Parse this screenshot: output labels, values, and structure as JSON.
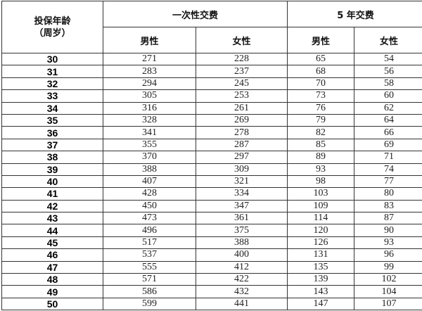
{
  "header": {
    "age_label_line1": "投保年龄",
    "age_label_line2": "（周岁）",
    "group_single": "一次性交费",
    "group_5year": "5 年交费",
    "male": "男性",
    "female": "女性"
  },
  "rows": [
    {
      "age": "30",
      "single_male": "271",
      "single_female": "228",
      "y5_male": "65",
      "y5_female": "54"
    },
    {
      "age": "31",
      "single_male": "283",
      "single_female": "237",
      "y5_male": "68",
      "y5_female": "56"
    },
    {
      "age": "32",
      "single_male": "294",
      "single_female": "245",
      "y5_male": "70",
      "y5_female": "58"
    },
    {
      "age": "33",
      "single_male": "305",
      "single_female": "253",
      "y5_male": "73",
      "y5_female": "60"
    },
    {
      "age": "34",
      "single_male": "316",
      "single_female": "261",
      "y5_male": "76",
      "y5_female": "62"
    },
    {
      "age": "35",
      "single_male": "328",
      "single_female": "269",
      "y5_male": "79",
      "y5_female": "64"
    },
    {
      "age": "36",
      "single_male": "341",
      "single_female": "278",
      "y5_male": "82",
      "y5_female": "66"
    },
    {
      "age": "37",
      "single_male": "355",
      "single_female": "287",
      "y5_male": "85",
      "y5_female": "69"
    },
    {
      "age": "38",
      "single_male": "370",
      "single_female": "297",
      "y5_male": "89",
      "y5_female": "71"
    },
    {
      "age": "39",
      "single_male": "388",
      "single_female": "309",
      "y5_male": "93",
      "y5_female": "74"
    },
    {
      "age": "40",
      "single_male": "407",
      "single_female": "321",
      "y5_male": "98",
      "y5_female": "77"
    },
    {
      "age": "41",
      "single_male": "428",
      "single_female": "334",
      "y5_male": "103",
      "y5_female": "80"
    },
    {
      "age": "42",
      "single_male": "450",
      "single_female": "347",
      "y5_male": "109",
      "y5_female": "83"
    },
    {
      "age": "43",
      "single_male": "473",
      "single_female": "361",
      "y5_male": "114",
      "y5_female": "87"
    },
    {
      "age": "44",
      "single_male": "496",
      "single_female": "375",
      "y5_male": "120",
      "y5_female": "90"
    },
    {
      "age": "45",
      "single_male": "517",
      "single_female": "388",
      "y5_male": "126",
      "y5_female": "93"
    },
    {
      "age": "46",
      "single_male": "537",
      "single_female": "400",
      "y5_male": "131",
      "y5_female": "96"
    },
    {
      "age": "47",
      "single_male": "555",
      "single_female": "412",
      "y5_male": "135",
      "y5_female": "99"
    },
    {
      "age": "48",
      "single_male": "571",
      "single_female": "422",
      "y5_male": "139",
      "y5_female": "102"
    },
    {
      "age": "49",
      "single_male": "586",
      "single_female": "432",
      "y5_male": "143",
      "y5_female": "104"
    },
    {
      "age": "50",
      "single_male": "599",
      "single_female": "441",
      "y5_male": "147",
      "y5_female": "107"
    }
  ]
}
